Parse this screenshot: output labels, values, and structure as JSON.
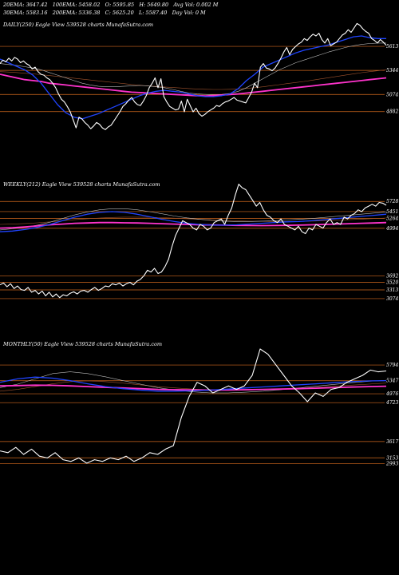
{
  "header": {
    "row1": [
      {
        "label": "20EMA",
        "value": "3647.42"
      },
      {
        "label": "100EMA",
        "value": "5458.02"
      },
      {
        "label": "O",
        "value": "5595.85"
      },
      {
        "label": "H",
        "value": "5649.80"
      },
      {
        "label": "Avg Vol",
        "value": "0.002  M"
      }
    ],
    "row2": [
      {
        "label": "30EMA",
        "value": "5583.16"
      },
      {
        "label": "200EMA",
        "value": "5336.38"
      },
      {
        "label": "C",
        "value": "5625.20"
      },
      {
        "label": "L",
        "value": "5587.40"
      },
      {
        "label": "Day Vol",
        "value": "0  M"
      }
    ]
  },
  "colors": {
    "background": "#000000",
    "price": "#ffffff",
    "ema_fast": "#1f44ff",
    "ema_200": "#ff33cc",
    "ema_thin": "#bbbbbb",
    "ema_brown": "#a0522d",
    "levels": "#d2691e"
  },
  "chart_data": [
    {
      "type": "line",
      "title": "DAILY(250) Eagle  View  539528 charts MunafaSutra.com",
      "y_tick_labels": [
        "5613",
        "5344",
        "5074",
        "4882"
      ],
      "levels": [
        5613,
        5344,
        5074,
        4882
      ],
      "ylim": [
        4620,
        5900
      ],
      "series": [
        {
          "role": "price",
          "values": [
            5420,
            5460,
            5440,
            5480,
            5450,
            5490,
            5470,
            5430,
            5450,
            5420,
            5400,
            5360,
            5380,
            5330,
            5300,
            5290,
            5260,
            5240,
            5200,
            5150,
            5080,
            5020,
            4990,
            4940,
            4880,
            4790,
            4700,
            4820,
            4800,
            4760,
            4730,
            4690,
            4720,
            4760,
            4740,
            4700,
            4680,
            4710,
            4730,
            4780,
            4830,
            4880,
            4940,
            4970,
            5010,
            5040,
            4990,
            4960,
            4950,
            5000,
            5060,
            5150,
            5200,
            5260,
            5150,
            5250,
            5050,
            4990,
            4940,
            4920,
            4900,
            4910,
            5000,
            4880,
            5020,
            4950,
            4880,
            4920,
            4860,
            4830,
            4850,
            4880,
            4900,
            4920,
            4950,
            4940,
            4970,
            4990,
            5000,
            5020,
            5040,
            5010,
            5000,
            4990,
            4980,
            5040,
            5100,
            5200,
            5150,
            5380,
            5420,
            5370,
            5360,
            5340,
            5370,
            5420,
            5480,
            5550,
            5600,
            5520,
            5580,
            5610,
            5640,
            5660,
            5700,
            5680,
            5720,
            5750,
            5730,
            5760,
            5690,
            5650,
            5700,
            5620,
            5640,
            5660,
            5700,
            5740,
            5760,
            5800,
            5770,
            5820,
            5870,
            5850,
            5810,
            5780,
            5760,
            5700,
            5680,
            5650,
            5690,
            5660,
            5625
          ]
        },
        {
          "role": "ema_fast",
          "values": [
            5470,
            5430,
            5390,
            5350,
            5290,
            5200,
            5080,
            4960,
            4870,
            4820,
            4800,
            4830,
            4860,
            4900,
            4940,
            4980,
            5020,
            5060,
            5090,
            5110,
            5120,
            5110,
            5100,
            5080,
            5060,
            5050,
            5050,
            5060,
            5080,
            5140,
            5230,
            5300,
            5380,
            5420,
            5460,
            5500,
            5540,
            5570,
            5590,
            5610,
            5630,
            5660,
            5690,
            5720,
            5730,
            5710,
            5700,
            5700
          ]
        },
        {
          "role": "ema_200",
          "values": [
            5300,
            5280,
            5260,
            5240,
            5230,
            5220,
            5200,
            5190,
            5180,
            5170,
            5160,
            5150,
            5140,
            5130,
            5120,
            5110,
            5100,
            5095,
            5090,
            5085,
            5080,
            5075,
            5070,
            5065,
            5060,
            5058,
            5062,
            5068,
            5074,
            5080,
            5090,
            5100,
            5110,
            5120,
            5130,
            5140,
            5150,
            5160,
            5170,
            5180,
            5190,
            5200,
            5210,
            5220,
            5230,
            5240,
            5250,
            5260
          ]
        },
        {
          "role": "ema_thin",
          "values": [
            5420,
            5410,
            5400,
            5385,
            5370,
            5350,
            5320,
            5290,
            5260,
            5230,
            5200,
            5180,
            5165,
            5160,
            5160,
            5165,
            5170,
            5175,
            5170,
            5160,
            5150,
            5130,
            5110,
            5090,
            5080,
            5075,
            5070,
            5075,
            5085,
            5110,
            5150,
            5200,
            5250,
            5300,
            5350,
            5390,
            5430,
            5460,
            5490,
            5520,
            5550,
            5575,
            5600,
            5620,
            5635,
            5645,
            5650,
            5650
          ]
        },
        {
          "role": "ema_brown",
          "values": [
            5330,
            5325,
            5320,
            5312,
            5305,
            5296,
            5286,
            5276,
            5266,
            5256,
            5246,
            5236,
            5226,
            5216,
            5206,
            5196,
            5186,
            5178,
            5170,
            5164,
            5158,
            5152,
            5146,
            5140,
            5136,
            5132,
            5130,
            5130,
            5132,
            5136,
            5142,
            5150,
            5160,
            5172,
            5184,
            5196,
            5208,
            5220,
            5234,
            5248,
            5262,
            5276,
            5290,
            5304,
            5318,
            5330,
            5340,
            5350
          ]
        }
      ]
    },
    {
      "type": "line",
      "title": "WEEKLY(212) Eagle  View  539528 charts MunafaSutra.com",
      "y_tick_labels": [
        "5728",
        "5451",
        "5264",
        "4994",
        "3692",
        "3520",
        "3313",
        "3074"
      ],
      "levels": [
        5728,
        5451,
        5264,
        4994,
        3692,
        3520,
        3313,
        3074
      ],
      "ylim": [
        2200,
        6300
      ],
      "series": [
        {
          "role": "price",
          "values": [
            3450,
            3500,
            3400,
            3480,
            3350,
            3420,
            3320,
            3300,
            3380,
            3250,
            3300,
            3200,
            3280,
            3150,
            3250,
            3120,
            3200,
            3100,
            3180,
            3150,
            3220,
            3260,
            3200,
            3280,
            3300,
            3250,
            3320,
            3380,
            3300,
            3350,
            3420,
            3400,
            3480,
            3450,
            3500,
            3420,
            3480,
            3520,
            3450,
            3550,
            3600,
            3700,
            3850,
            3800,
            3900,
            3760,
            3800,
            3950,
            4150,
            4500,
            4800,
            5000,
            5200,
            5150,
            5100,
            5000,
            4950,
            5100,
            5050,
            4950,
            5000,
            5150,
            5200,
            5250,
            5100,
            5350,
            5550,
            5900,
            6200,
            6100,
            6050,
            5900,
            5750,
            5600,
            5700,
            5500,
            5350,
            5300,
            5200,
            5150,
            5250,
            5100,
            5050,
            5000,
            4950,
            5050,
            4900,
            4850,
            5000,
            4950,
            5100,
            5050,
            5000,
            5150,
            5250,
            5100,
            5150,
            5100,
            5300,
            5250,
            5350,
            5400,
            5500,
            5450,
            5550,
            5600,
            5650,
            5600,
            5700,
            5680,
            5625
          ]
        },
        {
          "role": "ema_fast",
          "values": [
            4900,
            4920,
            4960,
            5020,
            5100,
            5200,
            5300,
            5380,
            5430,
            5450,
            5430,
            5380,
            5310,
            5240,
            5180,
            5130,
            5100,
            5080,
            5080,
            5090,
            5110,
            5130,
            5150,
            5170,
            5180,
            5200,
            5230,
            5260,
            5290,
            5320,
            5350,
            5380
          ]
        },
        {
          "role": "ema_200",
          "values": [
            5000,
            5010,
            5030,
            5060,
            5090,
            5110,
            5130,
            5140,
            5150,
            5150,
            5145,
            5140,
            5130,
            5120,
            5110,
            5100,
            5090,
            5085,
            5080,
            5075,
            5070,
            5068,
            5070,
            5075,
            5080,
            5090,
            5100,
            5110,
            5120,
            5130,
            5140,
            5150
          ]
        },
        {
          "role": "ema_thin",
          "values": [
            4950,
            4980,
            5020,
            5080,
            5160,
            5260,
            5360,
            5440,
            5500,
            5530,
            5530,
            5500,
            5450,
            5390,
            5330,
            5280,
            5240,
            5210,
            5190,
            5180,
            5180,
            5190,
            5200,
            5220,
            5240,
            5260,
            5290,
            5320,
            5350,
            5380,
            5410,
            5440
          ]
        },
        {
          "role": "ema_brown",
          "values": [
            5100,
            5110,
            5125,
            5145,
            5170,
            5200,
            5230,
            5255,
            5275,
            5290,
            5300,
            5300,
            5295,
            5285,
            5270,
            5255,
            5240,
            5225,
            5210,
            5200,
            5190,
            5185,
            5180,
            5180,
            5185,
            5190,
            5200,
            5215,
            5230,
            5245,
            5260,
            5275
          ]
        }
      ]
    },
    {
      "type": "line",
      "title": "MONTHLY(50) Eagle  View  539528 charts MunafaSutra.com",
      "y_tick_labels": [
        "5794",
        "5347",
        "4976",
        "4723",
        "3617",
        "3153",
        "2993"
      ],
      "levels": [
        5794,
        5347,
        4976,
        4723,
        3617,
        3153,
        2993
      ],
      "ylim": [
        2500,
        6500
      ],
      "series": [
        {
          "role": "price",
          "values": [
            3350,
            3300,
            3450,
            3250,
            3400,
            3200,
            3150,
            3300,
            3100,
            3050,
            3150,
            3000,
            3100,
            3050,
            3150,
            3100,
            3200,
            3050,
            3150,
            3300,
            3250,
            3400,
            3500,
            4300,
            4900,
            5300,
            5200,
            5000,
            5100,
            5200,
            5100,
            5200,
            5500,
            6250,
            6100,
            5800,
            5500,
            5200,
            5000,
            4750,
            5000,
            4900,
            5100,
            5150,
            5300,
            5400,
            5500,
            5650,
            5600,
            5625
          ]
        },
        {
          "role": "ema_fast",
          "values": [
            5300,
            5400,
            5450,
            5420,
            5350,
            5260,
            5180,
            5120,
            5080,
            5050,
            5050,
            5060,
            5080,
            5110,
            5140,
            5170,
            5200,
            5230,
            5260,
            5290,
            5320,
            5340,
            5350
          ]
        },
        {
          "role": "ema_200",
          "values": [
            5200,
            5210,
            5220,
            5215,
            5200,
            5180,
            5160,
            5140,
            5120,
            5100,
            5090,
            5085,
            5080,
            5085,
            5090,
            5100,
            5110,
            5120,
            5135,
            5150,
            5165,
            5180,
            5190
          ]
        },
        {
          "role": "ema_thin",
          "values": [
            5150,
            5250,
            5400,
            5550,
            5600,
            5550,
            5460,
            5350,
            5250,
            5150,
            5080,
            5030,
            5000,
            5000,
            5020,
            5050,
            5090,
            5140,
            5190,
            5240,
            5290,
            5330,
            5360
          ]
        },
        {
          "role": "ema_brown",
          "values": [
            5050,
            5100,
            5180,
            5260,
            5320,
            5340,
            5320,
            5280,
            5230,
            5180,
            5140,
            5110,
            5090,
            5080,
            5080,
            5090,
            5110,
            5130,
            5160,
            5190,
            5220,
            5250,
            5280
          ]
        }
      ]
    }
  ]
}
